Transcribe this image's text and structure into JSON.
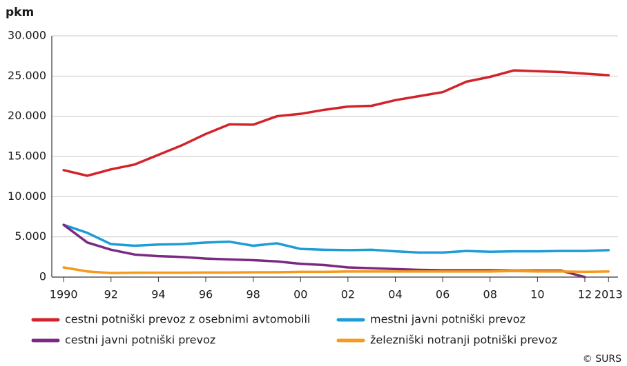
{
  "chart_data": {
    "type": "line",
    "y_label": "pkm",
    "source": "© SURS",
    "x": [
      1990,
      1991,
      1992,
      1993,
      1994,
      1995,
      1996,
      1997,
      1998,
      1999,
      2000,
      2001,
      2002,
      2003,
      2004,
      2005,
      2006,
      2007,
      2008,
      2009,
      2010,
      2011,
      2012,
      2013
    ],
    "xlim": [
      1989.5,
      2013.4
    ],
    "xticks": [
      {
        "value": 1990,
        "label": "1990"
      },
      {
        "value": 1992,
        "label": "92"
      },
      {
        "value": 1994,
        "label": "94"
      },
      {
        "value": 1996,
        "label": "96"
      },
      {
        "value": 1998,
        "label": "98"
      },
      {
        "value": 2000,
        "label": "00"
      },
      {
        "value": 2002,
        "label": "02"
      },
      {
        "value": 2004,
        "label": "04"
      },
      {
        "value": 2006,
        "label": "06"
      },
      {
        "value": 2008,
        "label": "08"
      },
      {
        "value": 2010,
        "label": "10"
      },
      {
        "value": 2012,
        "label": "12"
      },
      {
        "value": 2013,
        "label": "2013"
      }
    ],
    "ylim": [
      0,
      30000
    ],
    "yticks": [
      {
        "value": 0,
        "label": "0"
      },
      {
        "value": 5000,
        "label": "5.000"
      },
      {
        "value": 10000,
        "label": "10.000"
      },
      {
        "value": 15000,
        "label": "15.000"
      },
      {
        "value": 20000,
        "label": "20.000"
      },
      {
        "value": 25000,
        "label": "25.000"
      },
      {
        "value": 30000,
        "label": "30.000"
      }
    ],
    "grid": true,
    "series": [
      {
        "name": "cestni potniški prevoz z osebnimi avtomobili",
        "color": "#d2232a",
        "values": [
          13300,
          12600,
          13400,
          14000,
          15200,
          16400,
          17800,
          19000,
          18950,
          20000,
          20300,
          20800,
          21200,
          21300,
          22000,
          22500,
          23000,
          24300,
          24900,
          25700,
          25600,
          25500,
          25300,
          25100
        ]
      },
      {
        "name": "mestni javni potniški prevoz",
        "color": "#1e9cd7",
        "values": [
          6500,
          5500,
          4100,
          3900,
          4050,
          4100,
          4300,
          4400,
          3900,
          4200,
          3500,
          3400,
          3350,
          3400,
          3200,
          3050,
          3050,
          3250,
          3150,
          3200,
          3200,
          3250,
          3250,
          3350
        ]
      },
      {
        "name": "cestni javni potniški prevoz",
        "color": "#7b2a83",
        "values": [
          6500,
          4300,
          3400,
          2800,
          2600,
          2500,
          2300,
          2200,
          2100,
          1950,
          1650,
          1500,
          1200,
          1100,
          1000,
          900,
          850,
          850,
          850,
          800,
          800,
          800,
          0,
          null
        ]
      },
      {
        "name": "železniški notranji potniški prevoz",
        "color": "#f49a1c",
        "values": [
          1200,
          700,
          500,
          550,
          550,
          550,
          570,
          570,
          600,
          600,
          650,
          650,
          700,
          700,
          700,
          700,
          700,
          700,
          700,
          750,
          700,
          700,
          650,
          700
        ]
      }
    ]
  }
}
